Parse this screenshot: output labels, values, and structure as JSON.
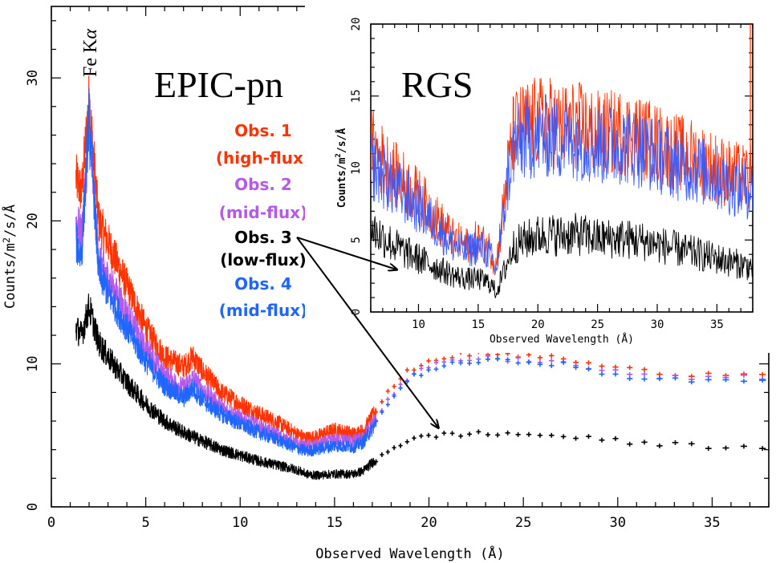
{
  "chart_data": [
    {
      "id": "epic",
      "type": "line",
      "title": "EPIC-pn",
      "xlabel": "Observed Wavelength (Å)",
      "ylabel": "Counts/m²/s/Å",
      "ylabel_parts": {
        "base": "Counts/m",
        "sup": "2",
        "rest": "/s/Å"
      },
      "xlim": [
        0,
        38
      ],
      "ylim": [
        0,
        35
      ],
      "xticks": [
        0,
        5,
        10,
        15,
        20,
        25,
        30,
        35
      ],
      "yticks": [
        0,
        10,
        20,
        30
      ],
      "xtick_labels": [
        "0",
        "5",
        "10",
        "15",
        "20",
        "25",
        "30",
        "35"
      ],
      "ytick_labels": [
        "0",
        "10",
        "20",
        "30"
      ],
      "line_annotation": {
        "text": "Fe K",
        "greek": "α",
        "x": 2.0
      },
      "legend": [
        {
          "name": "Obs. 1",
          "note": "(high-flux)",
          "color": "#ff3300"
        },
        {
          "name": "Obs. 2",
          "note": "(mid-flux)",
          "color": "#b35ae8"
        },
        {
          "name": "Obs. 3",
          "note": "(low-flux)",
          "color": "#000000"
        },
        {
          "name": "Obs. 4",
          "note": "(mid-flux)",
          "color": "#1f66ff"
        }
      ],
      "series": [
        {
          "name": "Obs. 1",
          "color": "#ff3300",
          "x": [
            1.3,
            1.6,
            2.0,
            2.5,
            3,
            4,
            5,
            6,
            7,
            7.5,
            8,
            9,
            10,
            11,
            12,
            13,
            13.5,
            14,
            15,
            16,
            16.5,
            17,
            18,
            19,
            20,
            21,
            22,
            23,
            24,
            25,
            26,
            27,
            28,
            30,
            32,
            34,
            36,
            38
          ],
          "values": [
            23,
            22,
            28.5,
            20,
            18.5,
            15.5,
            12.5,
            10.5,
            9.8,
            10.5,
            9.5,
            8.0,
            7.2,
            6.5,
            5.9,
            5.1,
            4.8,
            4.9,
            5.4,
            5.1,
            5.3,
            6.3,
            8.3,
            9.6,
            10.2,
            10.5,
            10.7,
            10.7,
            10.6,
            10.6,
            10.5,
            10.4,
            10.1,
            9.7,
            9.4,
            9.3,
            9.3,
            9.4
          ]
        },
        {
          "name": "Obs. 2",
          "color": "#b35ae8",
          "x": [
            1.3,
            1.6,
            2.0,
            2.5,
            3,
            4,
            5,
            6,
            7,
            7.5,
            8,
            9,
            10,
            11,
            12,
            13,
            13.5,
            14,
            15,
            16,
            16.5,
            17,
            18,
            19,
            20,
            21,
            22,
            23,
            24,
            25,
            26,
            27,
            28,
            30,
            32,
            34,
            36,
            38
          ],
          "values": [
            20,
            19,
            26,
            17.5,
            16,
            13.5,
            11,
            9.2,
            8.3,
            9.0,
            8.2,
            7.0,
            6.2,
            5.6,
            5.0,
            4.4,
            4.2,
            4.3,
            4.7,
            4.6,
            4.8,
            5.8,
            7.8,
            9.1,
            9.8,
            10.1,
            10.3,
            10.4,
            10.3,
            10.3,
            10.2,
            10.1,
            9.8,
            9.4,
            9.1,
            9.0,
            9.0,
            9.1
          ]
        },
        {
          "name": "Obs. 3",
          "color": "#000000",
          "x": [
            1.3,
            1.6,
            2.0,
            2.5,
            3,
            4,
            5,
            6,
            7,
            8,
            9,
            10,
            11,
            12,
            13,
            13.5,
            14,
            15,
            16,
            16.5,
            17,
            18,
            19,
            20,
            21,
            22,
            23,
            24,
            25,
            26,
            27,
            28,
            30,
            32,
            34,
            36,
            38
          ],
          "values": [
            12.5,
            12,
            14,
            11.5,
            10.5,
            8.7,
            7.2,
            6.0,
            5.2,
            4.6,
            4.0,
            3.6,
            3.2,
            2.9,
            2.6,
            2.3,
            2.2,
            2.3,
            2.3,
            2.5,
            3.1,
            4.1,
            4.7,
            4.9,
            5.1,
            5.1,
            5.1,
            5.1,
            5.1,
            5.0,
            5.0,
            4.8,
            4.6,
            4.4,
            4.3,
            4.2,
            4.2
          ]
        },
        {
          "name": "Obs. 4",
          "color": "#1f66ff",
          "x": [
            1.3,
            1.6,
            2.0,
            2.5,
            3,
            4,
            5,
            6,
            7,
            7.5,
            8,
            9,
            10,
            11,
            12,
            13,
            13.5,
            14,
            15,
            16,
            16.5,
            17,
            18,
            19,
            20,
            21,
            22,
            23,
            24,
            25,
            26,
            27,
            28,
            30,
            32,
            34,
            36,
            38
          ],
          "values": [
            18.5,
            17.5,
            27.5,
            16.5,
            15,
            12.5,
            10.2,
            8.5,
            7.6,
            8.3,
            7.5,
            6.5,
            5.8,
            5.2,
            4.7,
            4.1,
            3.9,
            4.0,
            4.3,
            4.2,
            4.5,
            5.5,
            7.6,
            9.0,
            9.6,
            9.9,
            10.1,
            10.2,
            10.2,
            10.2,
            10.1,
            10.0,
            9.6,
            9.2,
            8.9,
            8.8,
            8.8,
            8.9
          ]
        }
      ]
    },
    {
      "id": "rgs",
      "type": "line",
      "title": "RGS",
      "xlabel": "Observed Wavelength (Å)",
      "ylabel": "Counts/m²/s/Å",
      "ylabel_parts": {
        "base": "Counts/m",
        "sup": "2",
        "rest": "/s/Å"
      },
      "xlim": [
        6,
        38
      ],
      "ylim": [
        0,
        20
      ],
      "xticks": [
        10,
        15,
        20,
        25,
        30,
        35
      ],
      "yticks": [
        0,
        5,
        10,
        15,
        20
      ],
      "xtick_labels": [
        "10",
        "15",
        "20",
        "25",
        "30",
        "35"
      ],
      "ytick_labels": [
        "0",
        "5",
        "10",
        "15",
        "20"
      ],
      "series": [
        {
          "name": "Obs. 1",
          "color": "#ff3300",
          "x": [
            6,
            7,
            8,
            9,
            10,
            11,
            12,
            13,
            14,
            15,
            16,
            16.5,
            17,
            17.5,
            18,
            19,
            20,
            21,
            22,
            23,
            24,
            25,
            26,
            27,
            28,
            29,
            30,
            31,
            32,
            33,
            34,
            35,
            36,
            37,
            38
          ],
          "values": [
            11.5,
            10.5,
            9.5,
            8.8,
            8.0,
            7.0,
            6.0,
            5.0,
            4.6,
            5.0,
            4.4,
            3.2,
            6.5,
            10,
            12.5,
            13,
            13.2,
            13.2,
            12.8,
            13,
            12.8,
            12.4,
            12.4,
            12.5,
            12.3,
            12,
            11.7,
            11.3,
            11.0,
            10.8,
            10.4,
            10.0,
            9.6,
            9.4,
            9.2
          ]
        },
        {
          "name": "Obs. 4",
          "color": "#3a5cff",
          "x": [
            6,
            7,
            8,
            9,
            10,
            11,
            12,
            13,
            14,
            15,
            16,
            16.5,
            17,
            17.5,
            18,
            19,
            20,
            21,
            22,
            23,
            24,
            25,
            26,
            27,
            28,
            29,
            30,
            31,
            32,
            33,
            34,
            35,
            36,
            37,
            38
          ],
          "values": [
            10.3,
            9.5,
            8.6,
            8.0,
            7.3,
            6.4,
            5.5,
            4.6,
            4.2,
            4.6,
            4.0,
            2.8,
            5.8,
            9.2,
            11.5,
            12,
            12.2,
            12.2,
            11.9,
            12.1,
            11.9,
            11.6,
            11.6,
            11.7,
            11.5,
            11.2,
            10.9,
            10.5,
            10.2,
            10.0,
            9.7,
            9.3,
            8.9,
            8.7,
            8.5
          ]
        },
        {
          "name": "Obs. 3",
          "color": "#000000",
          "x": [
            6,
            7,
            8,
            9,
            10,
            11,
            12,
            13,
            14,
            15,
            16,
            16.5,
            17,
            17.5,
            18,
            19,
            20,
            21,
            22,
            23,
            24,
            25,
            26,
            27,
            28,
            29,
            30,
            31,
            32,
            33,
            34,
            35,
            36,
            37,
            38
          ],
          "values": [
            5.8,
            5.2,
            4.6,
            4.1,
            3.7,
            3.3,
            2.9,
            2.5,
            2.3,
            2.3,
            2.0,
            1.4,
            2.4,
            3.6,
            4.6,
            5.0,
            5.3,
            5.4,
            5.3,
            5.4,
            5.3,
            5.1,
            5.1,
            5.1,
            5.0,
            4.9,
            4.7,
            4.5,
            4.3,
            4.1,
            3.9,
            3.7,
            3.5,
            3.3,
            3.1
          ]
        }
      ]
    }
  ]
}
